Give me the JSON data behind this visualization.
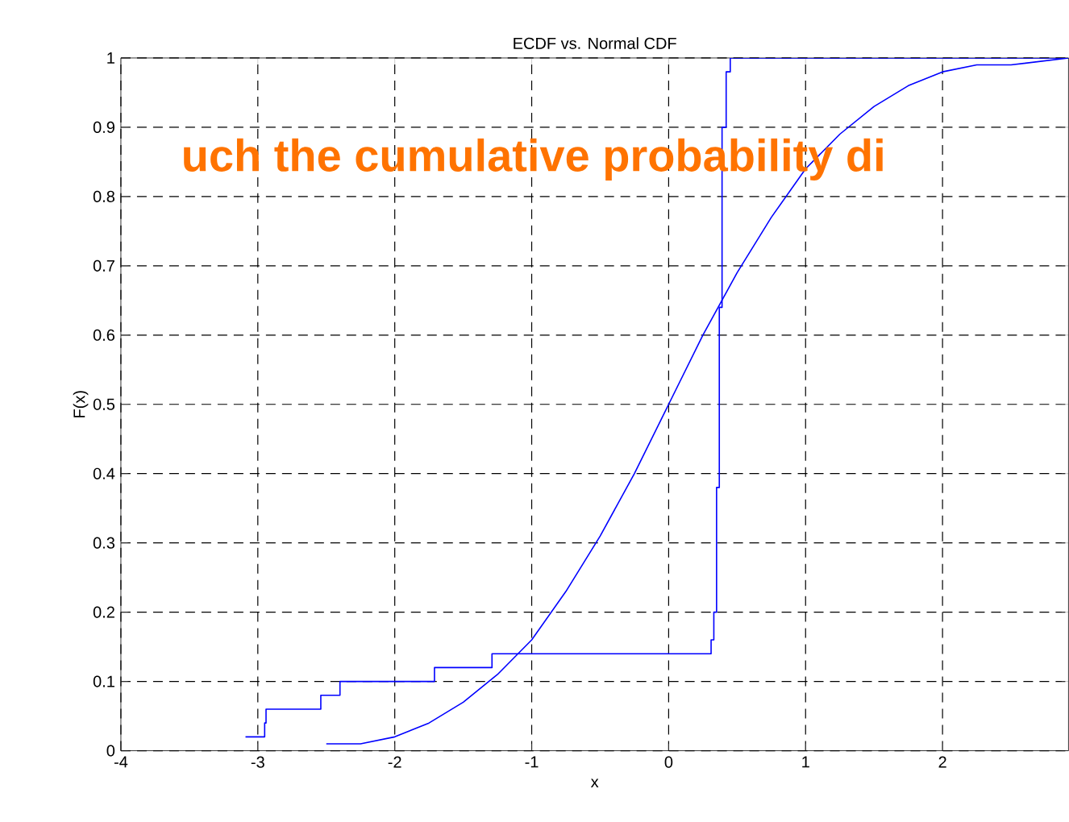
{
  "chart_data": {
    "type": "line",
    "title": "ECDF vs. Normal CDF",
    "xlabel": "x",
    "ylabel": "F(x)",
    "xlim": [
      -4,
      2.92
    ],
    "ylim": [
      0,
      1
    ],
    "xticks": [
      -4,
      -3,
      -2,
      -1,
      0,
      1,
      2
    ],
    "yticks": [
      0,
      0.1,
      0.2,
      0.3,
      0.4,
      0.5,
      0.6,
      0.7,
      0.8,
      0.9,
      1
    ],
    "grid": true,
    "annotations": [
      "uch the cumulative probability di"
    ],
    "series": [
      {
        "type": "step",
        "color": "#0000ff",
        "x": [
          -3.09,
          -2.95,
          -2.94,
          -2.54,
          -2.4,
          -1.71,
          -1.29,
          0.31,
          0.33,
          0.35,
          0.37,
          0.39,
          0.42,
          0.45,
          2.92
        ],
        "values": [
          0.02,
          0.04,
          0.06,
          0.08,
          0.1,
          0.12,
          0.14,
          0.16,
          0.2,
          0.38,
          0.64,
          0.9,
          0.98,
          1,
          1
        ]
      },
      {
        "type": "line",
        "color": "#0000ff",
        "x": [
          -2.5,
          -2.25,
          -2,
          -1.75,
          -1.5,
          -1.25,
          -1,
          -0.75,
          -0.5,
          -0.25,
          0,
          0.25,
          0.5,
          0.75,
          1,
          1.25,
          1.5,
          1.75,
          2,
          2.25,
          2.5,
          2.92
        ],
        "values": [
          0.01,
          0.01,
          0.02,
          0.04,
          0.07,
          0.11,
          0.16,
          0.23,
          0.31,
          0.4,
          0.5,
          0.6,
          0.69,
          0.77,
          0.84,
          0.89,
          0.93,
          0.96,
          0.98,
          0.99,
          0.99,
          1.0
        ]
      }
    ]
  }
}
